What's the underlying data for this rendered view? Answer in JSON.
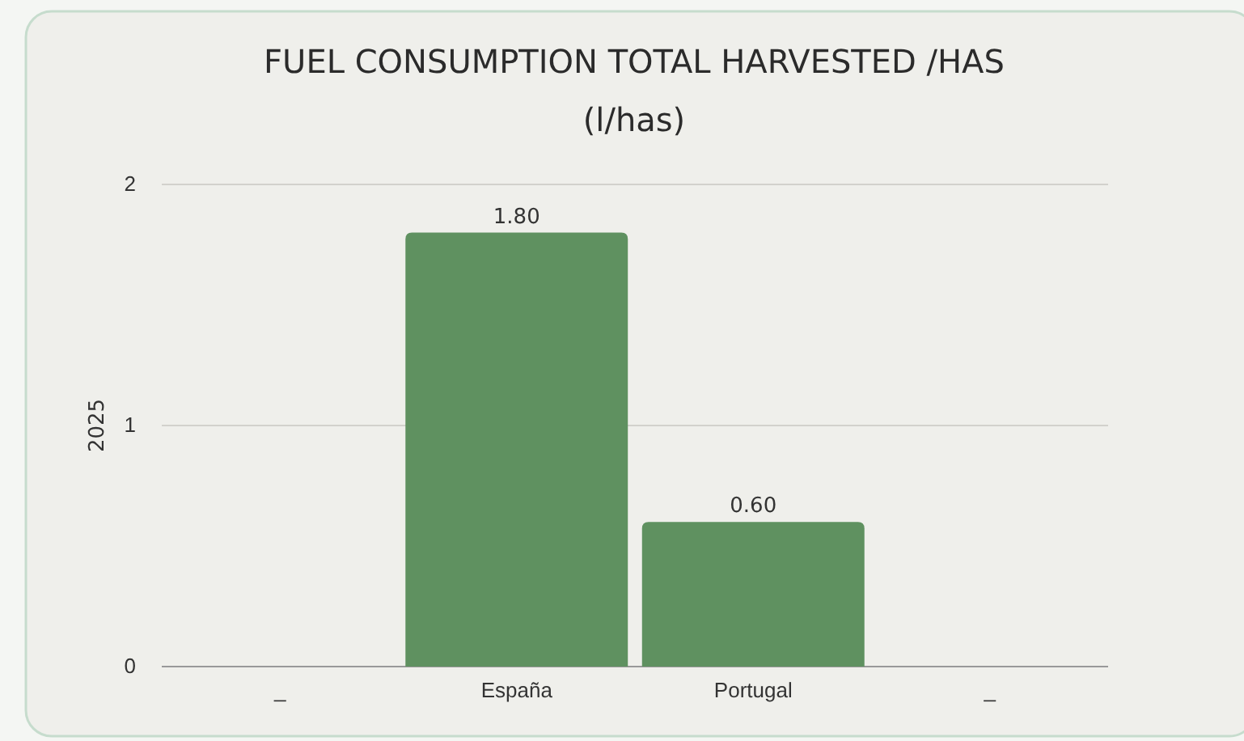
{
  "chart_data": {
    "type": "bar",
    "title": "FUEL CONSUMPTION TOTAL HARVESTED /HAS",
    "subtitle": "(l/has)",
    "ylabel": "2025",
    "categories": [
      "_",
      "España",
      "Portugal",
      "_"
    ],
    "series": [
      {
        "color": "#5f9160",
        "values": [
          null,
          1.8,
          0.6,
          null
        ],
        "value_labels": [
          null,
          "1.80",
          "0.60",
          null
        ]
      }
    ],
    "ylim": [
      0,
      2
    ],
    "yticks": [
      0,
      1,
      2
    ],
    "grid": "y"
  }
}
